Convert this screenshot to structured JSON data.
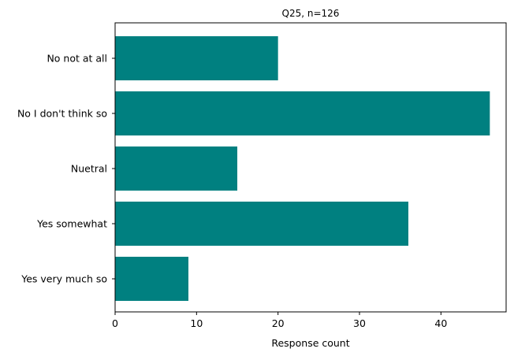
{
  "chart_data": {
    "type": "bar",
    "orientation": "horizontal",
    "title": "Q25, n=126",
    "xlabel": "Response count",
    "ylabel": "",
    "categories": [
      "No not at all",
      "No I don't think so",
      "Nuetral",
      "Yes somewhat",
      "Yes very much so"
    ],
    "values": [
      20,
      46,
      15,
      36,
      9
    ],
    "xlim": [
      0,
      48
    ],
    "xticks": [
      0,
      10,
      20,
      30,
      40
    ],
    "grid": false,
    "bar_color": "#008080"
  }
}
